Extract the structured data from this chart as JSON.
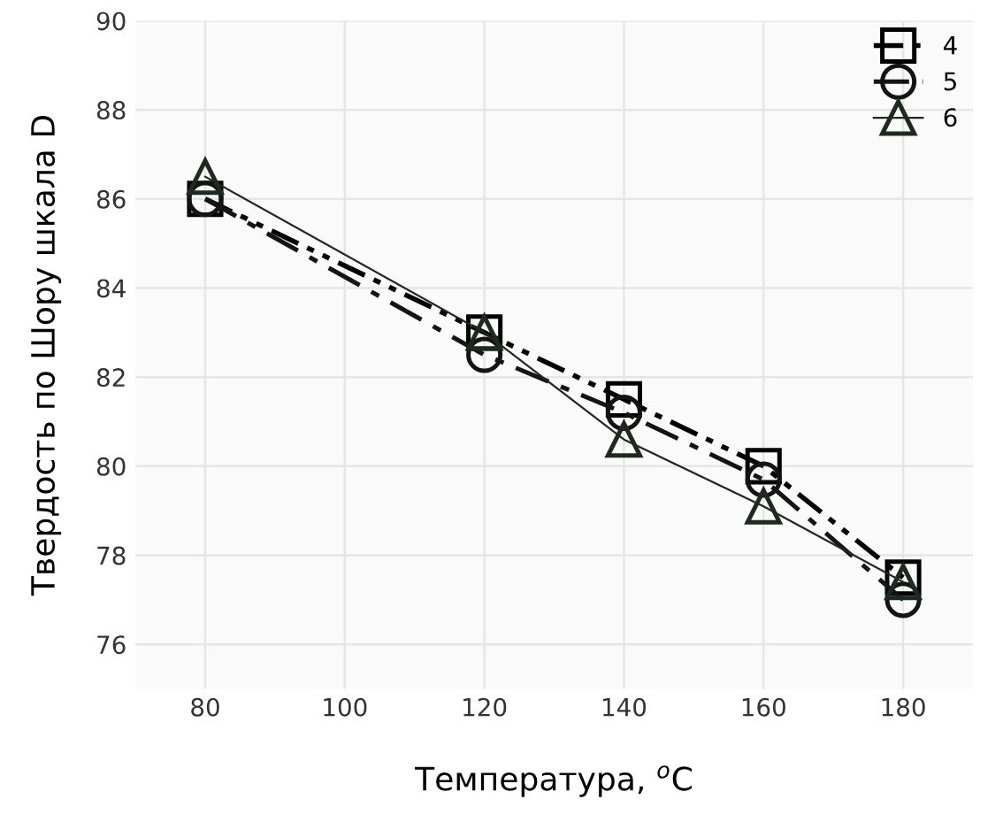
{
  "chart_data": {
    "type": "line",
    "xlabel": "Температура, $^{o}$C",
    "ylabel": "Твердость по Шору шкала D",
    "x": [
      80,
      120,
      140,
      160,
      180
    ],
    "series": [
      {
        "name": "4",
        "color": "#000000",
        "values": [
          86,
          83,
          81.5,
          80,
          77.5
        ],
        "marker": "square",
        "line_style": "dashdotdot"
      },
      {
        "name": "5",
        "color": "#141414",
        "values": [
          86,
          82.5,
          81.2,
          79.7,
          77
        ],
        "marker": "circle",
        "line_style": "dashdot"
      },
      {
        "name": "6",
        "color": "#1f2a1f",
        "values": [
          86.5,
          83,
          80.6,
          79.1,
          77.4
        ],
        "marker": "triangle",
        "line_style": "solid"
      }
    ],
    "xlim": [
      70,
      190
    ],
    "xticks": [
      80,
      100,
      120,
      140,
      160,
      180
    ],
    "ylim": [
      75,
      90
    ],
    "yticks": [
      76,
      78,
      80,
      82,
      84,
      86,
      88,
      90
    ],
    "grid": true,
    "legend": "top right"
  }
}
